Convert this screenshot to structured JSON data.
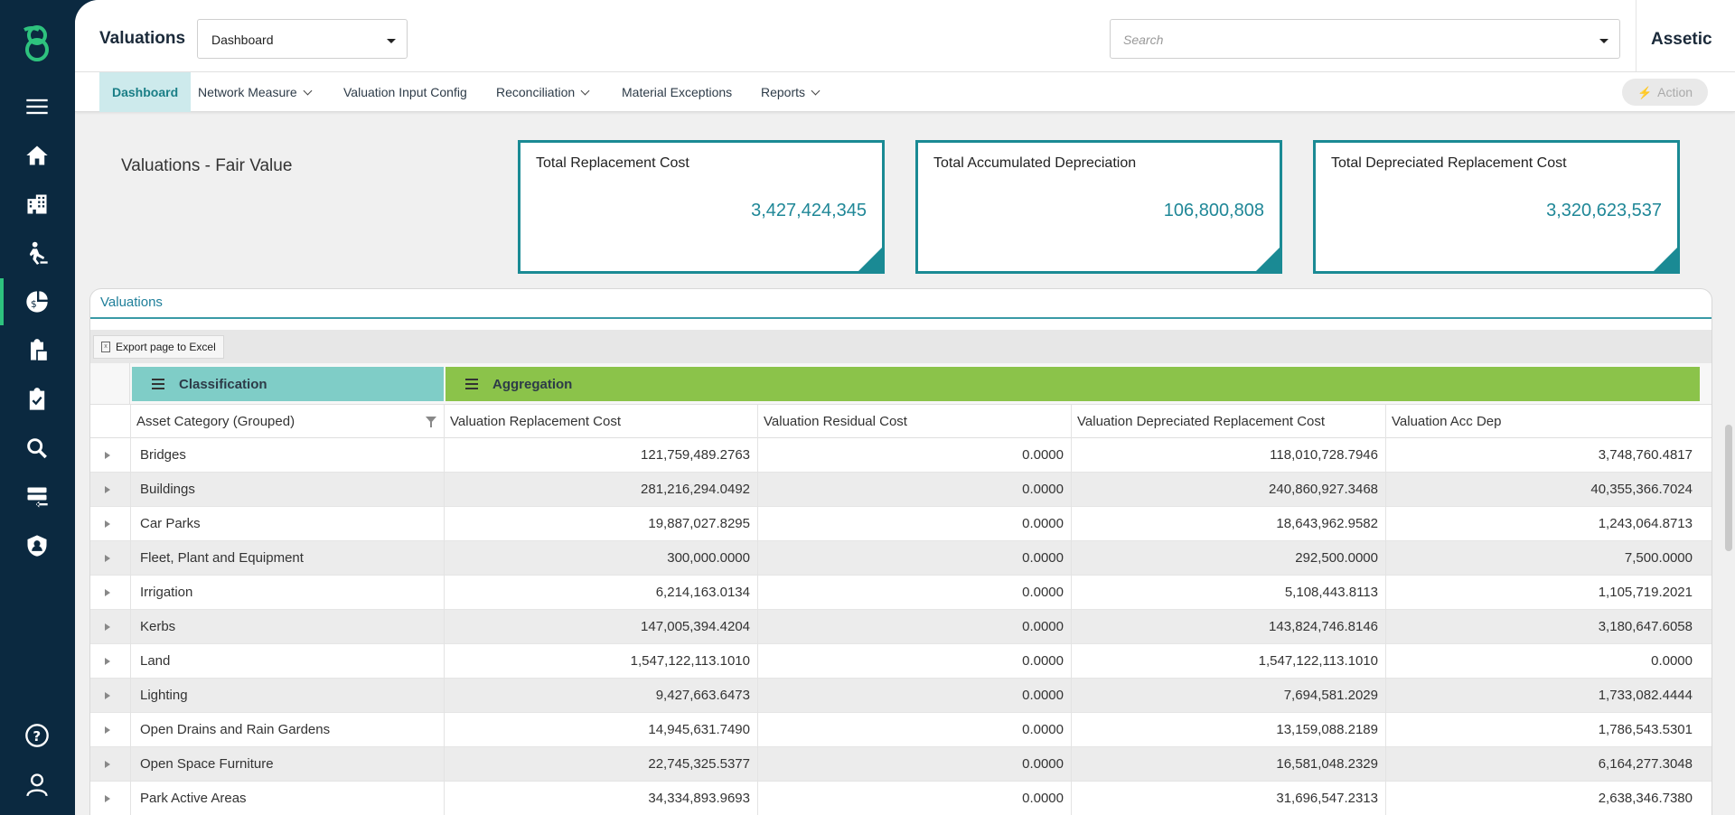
{
  "header": {
    "app_title": "Valuations",
    "dashboard_select": "Dashboard",
    "search_placeholder": "Search",
    "brand": "Assetic"
  },
  "nav": {
    "items": [
      "Dashboard",
      "Network Measure",
      "Valuation Input Config",
      "Reconciliation",
      "Material Exceptions",
      "Reports"
    ],
    "action_label": "Action"
  },
  "page_title": "Valuations - Fair Value",
  "kpis": [
    {
      "label": "Total Replacement Cost",
      "value": "3,427,424,345"
    },
    {
      "label": "Total Accumulated Depreciation",
      "value": "106,800,808"
    },
    {
      "label": "Total Depreciated Replacement Cost",
      "value": "3,320,623,537"
    }
  ],
  "panel": {
    "tab": "Valuations",
    "export_label": "Export page to Excel",
    "groups": {
      "classification": "Classification",
      "aggregation": "Aggregation"
    },
    "columns": [
      "Asset Category (Grouped)",
      "Valuation Replacement Cost",
      "Valuation Residual Cost",
      "Valuation Depreciated Replacement Cost",
      "Valuation Acc Dep"
    ],
    "rows": [
      [
        "Bridges",
        "121,759,489.2763",
        "0.0000",
        "118,010,728.7946",
        "3,748,760.4817"
      ],
      [
        "Buildings",
        "281,216,294.0492",
        "0.0000",
        "240,860,927.3468",
        "40,355,366.7024"
      ],
      [
        "Car Parks",
        "19,887,027.8295",
        "0.0000",
        "18,643,962.9582",
        "1,243,064.8713"
      ],
      [
        "Fleet, Plant and Equipment",
        "300,000.0000",
        "0.0000",
        "292,500.0000",
        "7,500.0000"
      ],
      [
        "Irrigation",
        "6,214,163.0134",
        "0.0000",
        "5,108,443.8113",
        "1,105,719.2021"
      ],
      [
        "Kerbs",
        "147,005,394.4204",
        "0.0000",
        "143,824,746.8146",
        "3,180,647.6058"
      ],
      [
        "Land",
        "1,547,122,113.1010",
        "0.0000",
        "1,547,122,113.1010",
        "0.0000"
      ],
      [
        "Lighting",
        "9,427,663.6473",
        "0.0000",
        "7,694,581.2029",
        "1,733,082.4444"
      ],
      [
        "Open Drains and Rain Gardens",
        "14,945,631.7490",
        "0.0000",
        "13,159,088.2189",
        "1,786,543.5301"
      ],
      [
        "Open Space Furniture",
        "22,745,325.5377",
        "0.0000",
        "16,581,048.2329",
        "6,164,277.3048"
      ],
      [
        "Park Active Areas",
        "34,334,893.9693",
        "0.0000",
        "31,696,547.2313",
        "2,638,346.7380"
      ]
    ]
  },
  "colors": {
    "sidebar": "#0b2940",
    "accent": "#1a8a94",
    "classification_header": "#7fcdc7",
    "aggregation_header": "#8bc34a",
    "active_indicator": "#2ec27e"
  }
}
